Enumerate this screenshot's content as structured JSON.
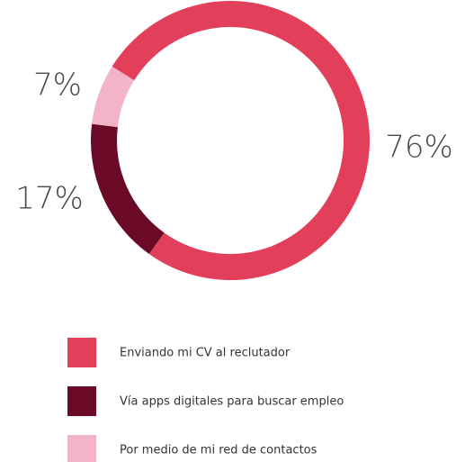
{
  "chart_data": {
    "type": "donut",
    "categories": [
      "Enviando mi CV al reclutador",
      "Vía apps digitales para buscar empleo",
      "Por medio de mi red de contactos"
    ],
    "values": [
      76,
      17,
      7
    ],
    "value_labels": [
      "76%",
      "17%",
      "7%"
    ],
    "colors": [
      "#e2405a",
      "#6b0a26",
      "#f2b4c6"
    ]
  }
}
